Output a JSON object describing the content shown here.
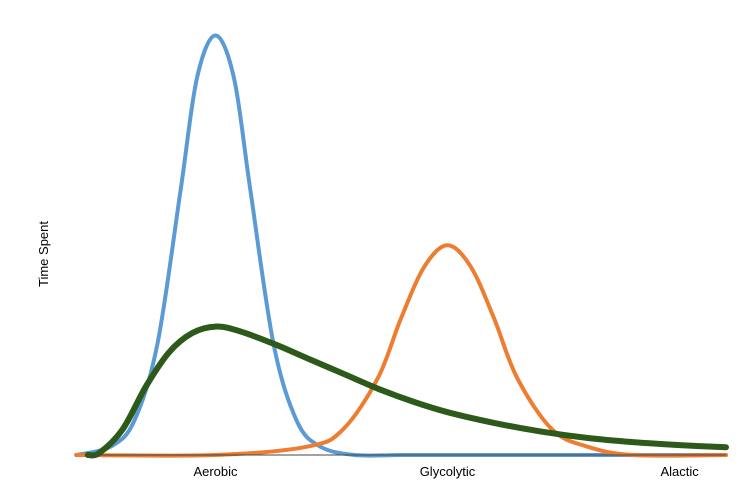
{
  "chart_data": {
    "type": "line",
    "title": "",
    "xlabel": "",
    "ylabel": "Time Spent",
    "categories": [
      "Aerobic",
      "Glycolytic",
      "Alactic"
    ],
    "category_positions": [
      0,
      1,
      2
    ],
    "xlim": [
      -0.67,
      2.2
    ],
    "ylim": [
      0,
      1.0
    ],
    "grid": false,
    "legend": "none",
    "series": [
      {
        "color": "#5b9bd5",
        "x": [
          -0.6,
          -0.45,
          -0.35,
          -0.25,
          -0.15,
          -0.08,
          0.0,
          0.08,
          0.15,
          0.25,
          0.35,
          0.45,
          0.6,
          0.8,
          1.0,
          1.5,
          2.2
        ],
        "y": [
          0.0,
          0.02,
          0.08,
          0.26,
          0.62,
          0.88,
          0.98,
          0.88,
          0.62,
          0.26,
          0.08,
          0.02,
          0.0,
          0.0,
          0.0,
          0.0,
          0.0
        ]
      },
      {
        "color": "#ed7d31",
        "x": [
          -0.6,
          0.0,
          0.4,
          0.55,
          0.7,
          0.8,
          0.9,
          1.0,
          1.1,
          1.2,
          1.3,
          1.45,
          1.6,
          1.8,
          2.2
        ],
        "y": [
          0.0,
          0.0,
          0.02,
          0.06,
          0.18,
          0.32,
          0.44,
          0.49,
          0.44,
          0.32,
          0.18,
          0.06,
          0.02,
          0.0,
          0.0
        ]
      },
      {
        "color": "#2d5a1b",
        "x": [
          -0.55,
          -0.5,
          -0.4,
          -0.3,
          -0.2,
          -0.1,
          0.0,
          0.1,
          0.25,
          0.4,
          0.55,
          0.7,
          0.85,
          1.0,
          1.2,
          1.4,
          1.6,
          1.8,
          2.0,
          2.2
        ],
        "y": [
          0.0,
          0.005,
          0.06,
          0.16,
          0.24,
          0.285,
          0.3,
          0.29,
          0.26,
          0.225,
          0.19,
          0.155,
          0.125,
          0.1,
          0.075,
          0.055,
          0.04,
          0.03,
          0.023,
          0.018
        ]
      }
    ]
  }
}
